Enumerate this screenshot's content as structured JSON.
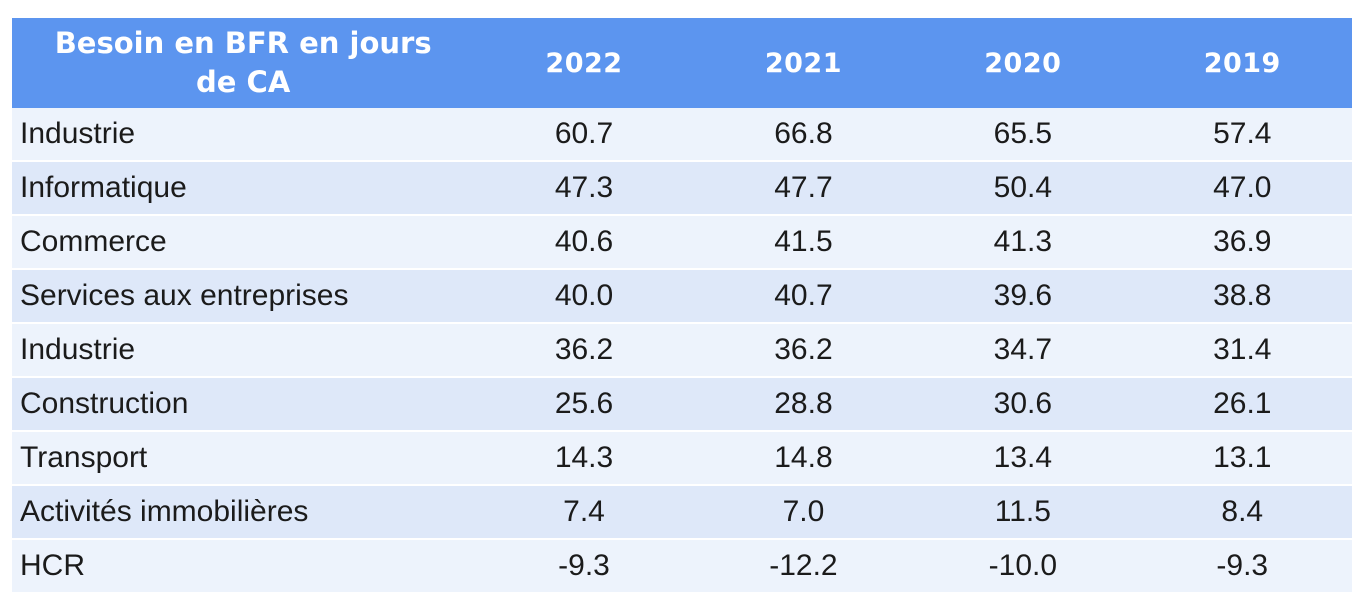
{
  "chart_data": {
    "type": "table",
    "title": "Besoin en BFR en jours de CA",
    "columns": [
      "2022",
      "2021",
      "2020",
      "2019"
    ],
    "rows": [
      {
        "label": "Industrie",
        "values": [
          60.7,
          66.8,
          65.5,
          57.4
        ]
      },
      {
        "label": "Informatique",
        "values": [
          47.3,
          47.7,
          50.4,
          47.0
        ]
      },
      {
        "label": "Commerce",
        "values": [
          40.6,
          41.5,
          41.3,
          36.9
        ]
      },
      {
        "label": "Services aux entreprises",
        "values": [
          40.0,
          40.7,
          39.6,
          38.8
        ]
      },
      {
        "label": "Industrie",
        "values": [
          36.2,
          36.2,
          34.7,
          31.4
        ]
      },
      {
        "label": "Construction",
        "values": [
          25.6,
          28.8,
          30.6,
          26.1
        ]
      },
      {
        "label": "Transport",
        "values": [
          14.3,
          14.8,
          13.4,
          13.1
        ]
      },
      {
        "label": "Activités immobilières",
        "values": [
          7.4,
          7.0,
          11.5,
          8.4
        ]
      },
      {
        "label": "HCR",
        "values": [
          -9.3,
          -12.2,
          -10.0,
          -9.3
        ]
      }
    ],
    "value_format": "one_decimal",
    "layout": {
      "grid": "off",
      "row_striping": "alternating"
    }
  },
  "colors": {
    "header_bg": "#5C95EF",
    "header_text": "#FFFFFF",
    "row_light_bg": "#EDF3FC",
    "row_dark_bg": "#DEE8F9",
    "body_text": "#1B1B1B",
    "row_separator": "#FFFFFF"
  }
}
